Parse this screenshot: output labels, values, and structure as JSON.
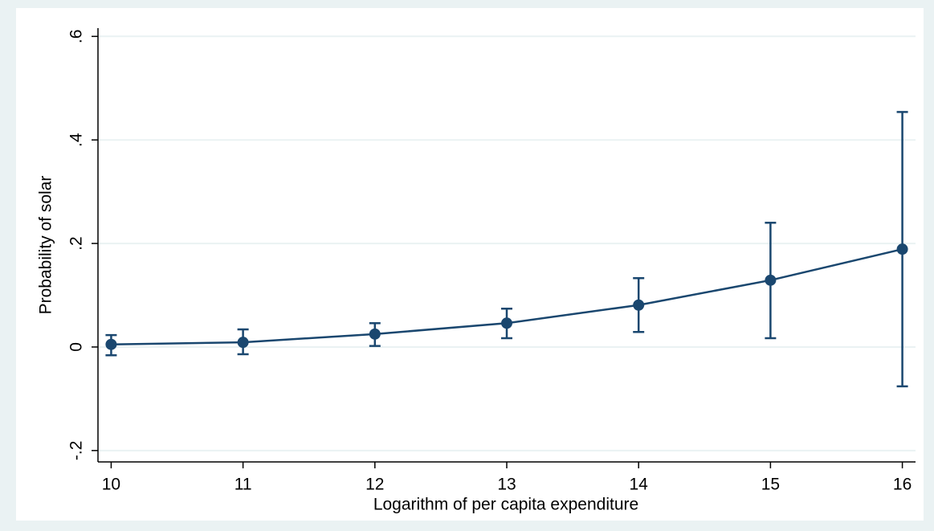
{
  "chart_data": {
    "type": "line",
    "x_label": "Logarithm of per capita expenditure",
    "y_label": "Probability of solar",
    "x": [
      10,
      11,
      12,
      13,
      14,
      15,
      16
    ],
    "series": [
      {
        "color": "#1a476f",
        "values": [
          0.005,
          0.009,
          0.025,
          0.046,
          0.081,
          0.129,
          0.189
        ],
        "lower": [
          -0.016,
          -0.014,
          0.002,
          0.017,
          0.029,
          0.017,
          -0.076
        ],
        "upper": [
          0.023,
          0.034,
          0.046,
          0.074,
          0.133,
          0.24,
          0.454
        ]
      }
    ],
    "xlim": [
      9.9,
      16.1
    ],
    "ylim": [
      -0.222,
      0.616
    ],
    "xticks": [
      10,
      11,
      12,
      13,
      14,
      15,
      16
    ],
    "yticks": [
      {
        "value": -0.2,
        "label": "-.2"
      },
      0,
      {
        "value": 0.2,
        "label": ".2"
      },
      {
        "value": 0.4,
        "label": ".4"
      },
      {
        "value": 0.6,
        "label": ".6"
      }
    ],
    "grid": true
  }
}
